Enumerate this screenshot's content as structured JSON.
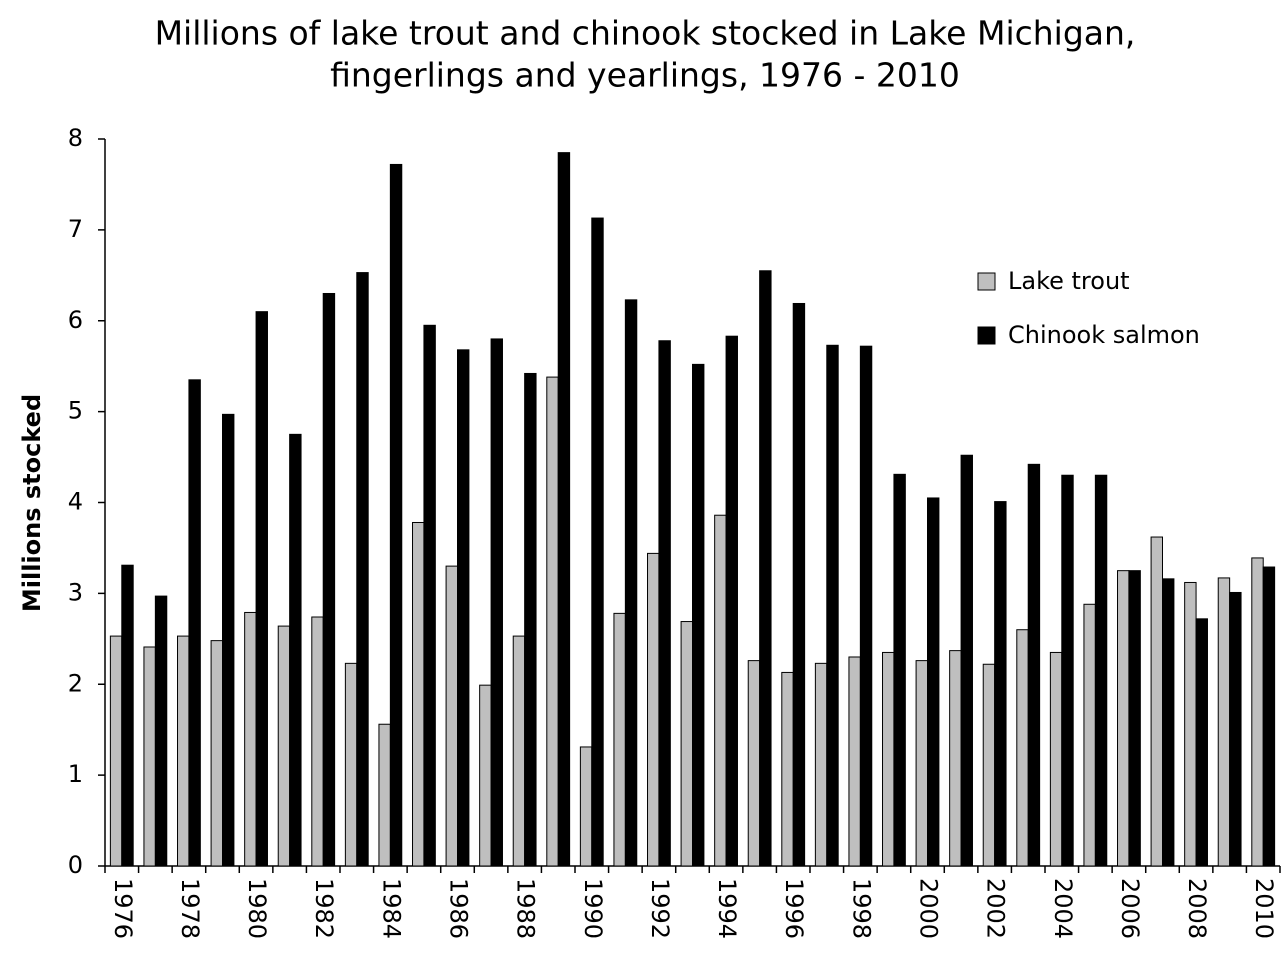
{
  "chart_data": {
    "type": "bar",
    "title": [
      "Millions of lake trout and chinook stocked in Lake Michigan,",
      "fingerlings and yearlings, 1976 - 2010"
    ],
    "y_label": "Millions stocked",
    "categories": [
      "1976",
      null,
      "1978",
      null,
      "1980",
      null,
      "1982",
      null,
      "1984",
      null,
      "1986",
      null,
      "1988",
      null,
      "1990",
      null,
      "1992",
      null,
      "1994",
      null,
      "1996",
      null,
      "1998",
      null,
      "2000",
      null,
      "2002",
      null,
      "2004",
      null,
      "2006",
      null,
      "2008",
      null,
      "2010"
    ],
    "series": [
      {
        "name": "Lake trout",
        "color": "#bfbfbf",
        "values": [
          2.53,
          2.41,
          2.53,
          2.48,
          2.79,
          2.64,
          2.74,
          2.23,
          1.56,
          3.78,
          3.3,
          1.99,
          2.53,
          5.38,
          1.31,
          2.78,
          3.44,
          2.69,
          3.86,
          2.26,
          2.13,
          2.23,
          2.3,
          2.35,
          2.26,
          2.37,
          2.22,
          2.6,
          2.35,
          2.88,
          3.25,
          3.62,
          3.12,
          3.17,
          3.39
        ]
      },
      {
        "name": "Chinook salmon",
        "color": "#000000",
        "values": [
          3.31,
          2.97,
          5.35,
          4.97,
          6.1,
          4.75,
          6.3,
          6.53,
          7.72,
          5.95,
          5.68,
          5.8,
          5.42,
          7.85,
          7.13,
          6.23,
          5.78,
          5.52,
          5.83,
          6.55,
          6.19,
          5.73,
          5.72,
          4.31,
          4.05,
          4.52,
          4.01,
          4.42,
          4.3,
          4.3,
          3.25,
          3.16,
          2.72,
          3.01,
          3.29
        ]
      }
    ],
    "ylim": [
      0,
      8
    ],
    "yticks": [
      0,
      1,
      2,
      3,
      4,
      5,
      6,
      7,
      8
    ],
    "grid": false,
    "legend": "right"
  }
}
